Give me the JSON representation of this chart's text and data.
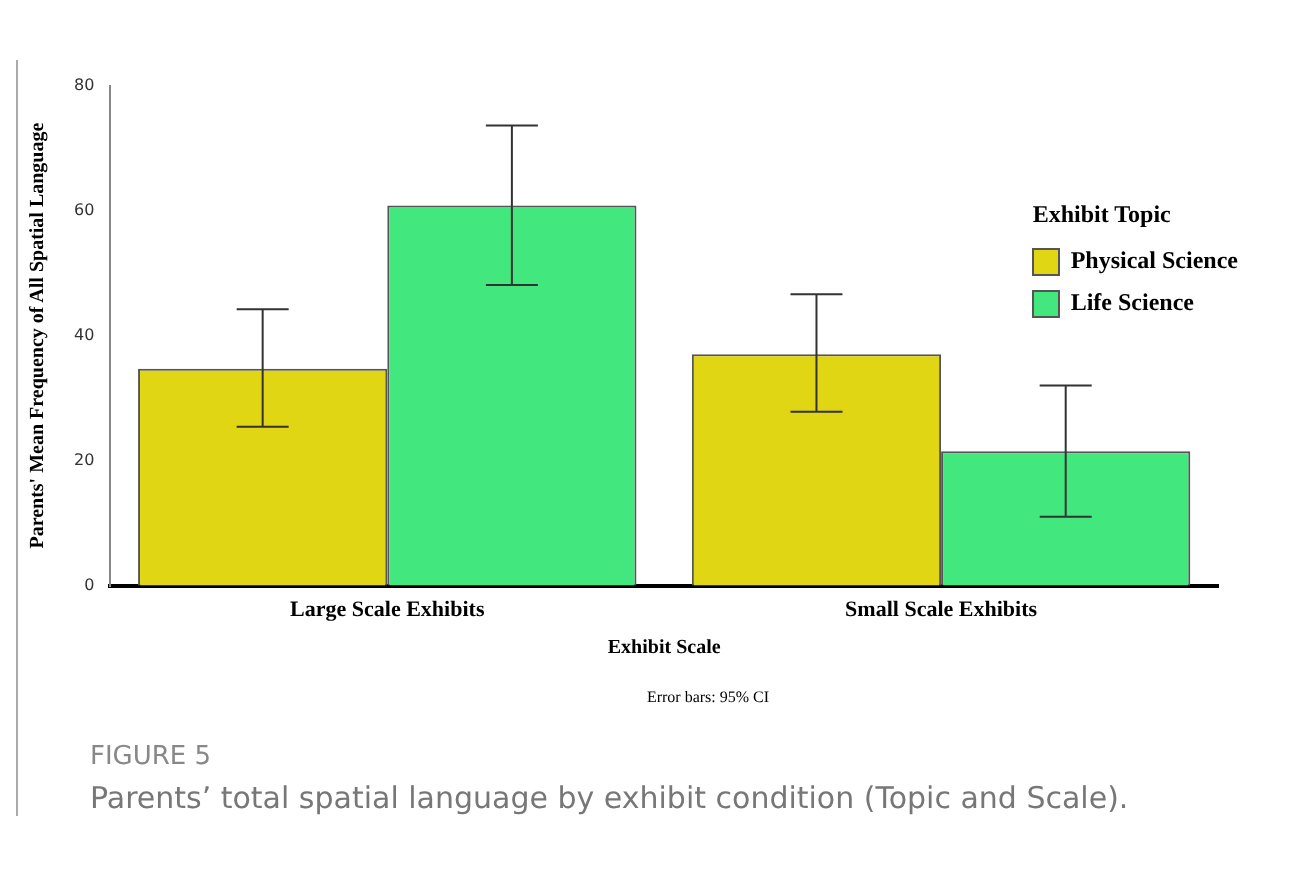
{
  "chart_data": {
    "type": "bar",
    "xlabel": "Exhibit Scale",
    "ylabel": "Parents' Mean Frequency of All Spatial Language",
    "legend_title": "Exhibit Topic",
    "categories": [
      "Large Scale Exhibits",
      "Small Scale Exhibits"
    ],
    "series": [
      {
        "name": "Physical Science",
        "color": "#e1d614",
        "values": [
          34.7,
          37.0
        ],
        "errors": [
          [
            25.4,
            44.2
          ],
          [
            27.8,
            46.6
          ]
        ]
      },
      {
        "name": "Life Science",
        "color": "#42e87e",
        "values": [
          60.8,
          21.5
        ],
        "errors": [
          [
            48.1,
            73.6
          ],
          [
            11.0,
            32.0
          ]
        ]
      }
    ],
    "ylim": [
      0,
      80
    ],
    "yticks": [
      0,
      20,
      40,
      60,
      80
    ],
    "grid": false,
    "legend": "top right",
    "annotations": [
      "Error bars: 95% CI",
      "FIGURE 5",
      "Parents’ total spatial language by exhibit condition (Topic and Scale)."
    ]
  }
}
